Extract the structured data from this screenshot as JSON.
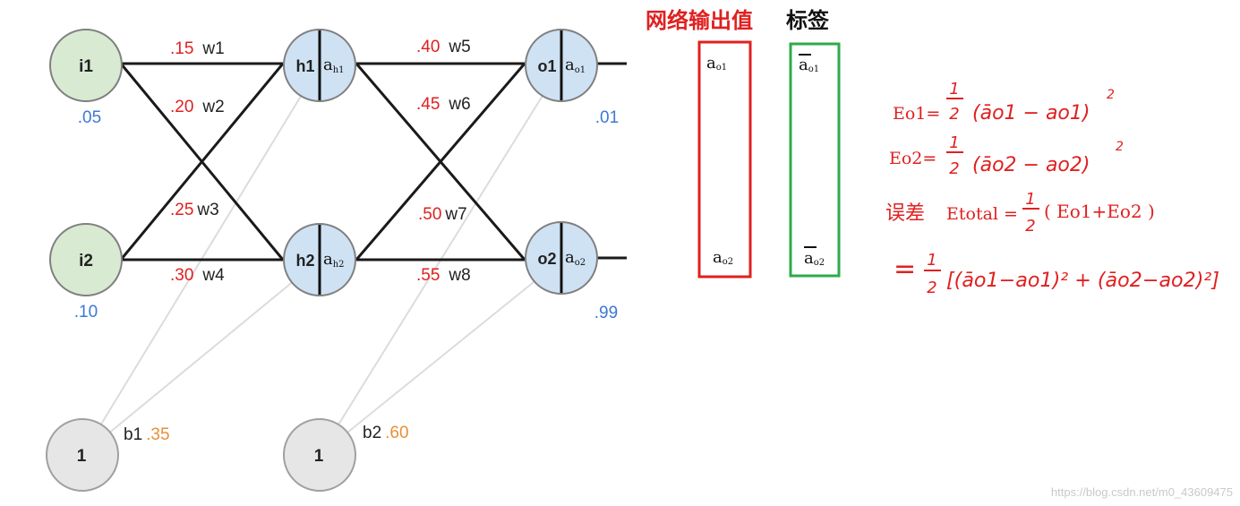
{
  "network": {
    "inputs": [
      {
        "name": "i1",
        "value": ".05"
      },
      {
        "name": "i2",
        "value": ".10"
      }
    ],
    "hidden": [
      {
        "name": "h1",
        "activation": "a",
        "activation_sub": "h1"
      },
      {
        "name": "h2",
        "activation": "a",
        "activation_sub": "h2"
      }
    ],
    "outputs": [
      {
        "name": "o1",
        "activation": "a",
        "activation_sub": "o1",
        "target": ".01"
      },
      {
        "name": "o2",
        "activation": "a",
        "activation_sub": "o2",
        "target": ".99"
      }
    ],
    "biases": [
      {
        "node": "1",
        "name": "b1",
        "value": ".35"
      },
      {
        "node": "1",
        "name": "b2",
        "value": ".60"
      }
    ],
    "weights": [
      {
        "value": ".15",
        "name": "w1"
      },
      {
        "value": ".20",
        "name": "w2"
      },
      {
        "value": ".25",
        "name": "w3"
      },
      {
        "value": ".30",
        "name": "w4"
      },
      {
        "value": ".40",
        "name": "w5"
      },
      {
        "value": ".45",
        "name": "w6"
      },
      {
        "value": ".50",
        "name": "w7"
      },
      {
        "value": ".55",
        "name": "w8"
      }
    ],
    "colors": {
      "input_fill": "#d9ead3",
      "hidden_fill": "#cfe2f3",
      "bias_fill": "#e6e6e6",
      "weight_text": "#e02020",
      "value_text": "#3c78d8",
      "bias_text": "#e69138"
    }
  },
  "output_box": {
    "title": "网络输出值",
    "entries": [
      {
        "base": "a",
        "sub": "o1"
      },
      {
        "base": "a",
        "sub": "o2"
      }
    ],
    "color": "#e02020"
  },
  "label_box": {
    "title": "标签",
    "entries": [
      {
        "base": "a",
        "sub": "o1"
      },
      {
        "base": "a",
        "sub": "o2"
      }
    ],
    "color": "#2eaa4a"
  },
  "formulas": {
    "eo1_lhs": "Eo1=",
    "eo1_rhs": "(āo1 − ao1)",
    "eo2_lhs": "Eo2=",
    "eo2_rhs": "(āo2 − ao2)",
    "error_label": "误差",
    "etotal_lhs": "Etotal =",
    "etotal_rhs": "( Eo1+Eo2 )",
    "final_eq": "=",
    "final_rhs": "[(āo1−ao1)² + (āo2−ao2)²]",
    "half_num": "1",
    "half_den": "2",
    "square": "2"
  },
  "watermark": "https://blog.csdn.net/m0_43609475"
}
